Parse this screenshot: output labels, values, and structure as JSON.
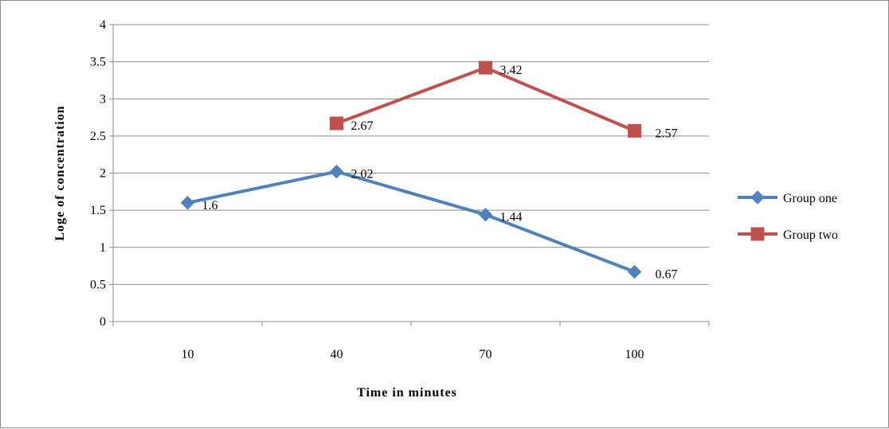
{
  "chart_data": {
    "type": "line",
    "title": "",
    "xlabel": "Time in minutes",
    "ylabel": "Loge of concentration",
    "categories": [
      "10",
      "40",
      "70",
      "100"
    ],
    "ylim": [
      0,
      4
    ],
    "yticks": [
      "0",
      "0.5",
      "1",
      "1.5",
      "2",
      "2.5",
      "3",
      "3.5",
      "4"
    ],
    "grid": true,
    "legend": "right",
    "series": [
      {
        "name": "Group one",
        "color": "#4f81bd",
        "marker": "diamond",
        "values": [
          1.6,
          2.02,
          1.44,
          0.67
        ],
        "labels": [
          "1.6",
          "2.02",
          "1.44",
          "0.67"
        ]
      },
      {
        "name": "Group two",
        "color": "#c0504d",
        "marker": "square",
        "values": [
          null,
          2.67,
          3.42,
          2.57
        ],
        "labels": [
          "",
          "2.67",
          "3.42",
          "2.57"
        ]
      }
    ]
  }
}
